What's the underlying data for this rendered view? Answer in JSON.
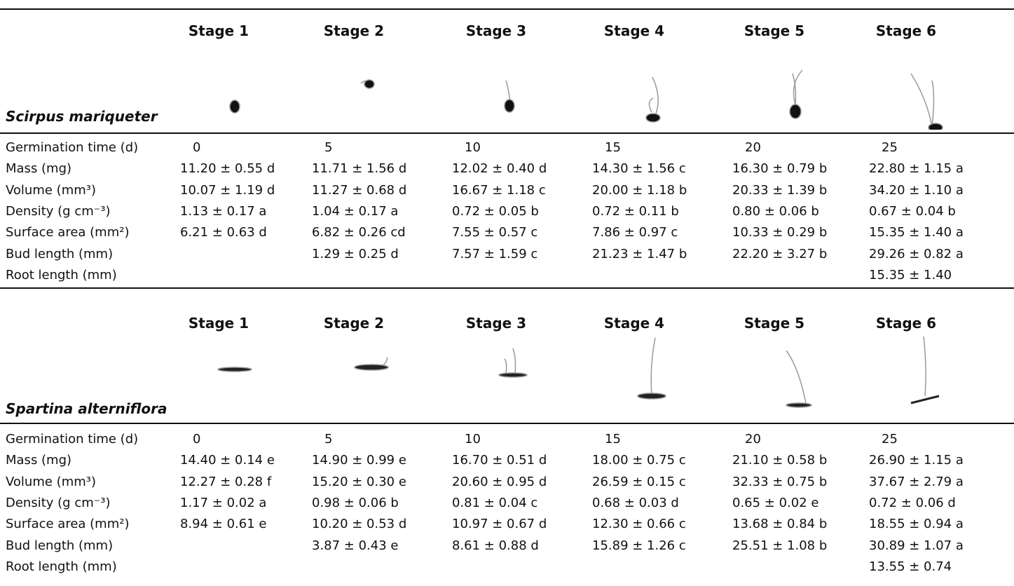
{
  "sections": [
    {
      "stages": [
        "Stage 1",
        "Stage 2",
        "Stage 3",
        "Stage 4",
        "Stage 5",
        "Stage 6"
      ],
      "species": "Scirpus mariqueter",
      "rows": [
        {
          "label": "Germination time (d)",
          "values": [
            "0",
            "5",
            "10",
            "15",
            "20",
            "25"
          ]
        },
        {
          "label": "Mass (mg)",
          "values": [
            "11.20 ± 0.55 d",
            "11.71 ± 1.56 d",
            "12.02 ± 0.40 d",
            "14.30 ± 1.56 c",
            "16.30 ± 0.79 b",
            "22.80 ± 1.15 a"
          ]
        },
        {
          "label": "Volume (mm³)",
          "values": [
            "10.07 ± 1.19 d",
            "11.27 ± 0.68 d",
            "16.67 ± 1.18 c",
            "20.00 ± 1.18 b",
            "20.33 ± 1.39 b",
            "34.20 ± 1.10 a"
          ]
        },
        {
          "label": "Density (g cm⁻³)",
          "values": [
            "1.13 ± 0.17 a",
            "1.04 ± 0.17 a",
            "0.72 ± 0.05 b",
            "0.72 ± 0.11 b",
            "0.80 ± 0.06 b",
            "0.67 ± 0.04 b"
          ]
        },
        {
          "label": "Surface area (mm²)",
          "values": [
            "6.21 ± 0.63 d",
            "6.82 ± 0.26 cd",
            "7.55 ± 0.57 c",
            "7.86 ± 0.97 c",
            "10.33 ± 0.29 b",
            "15.35 ± 1.40 a"
          ]
        },
        {
          "label": "Bud length (mm)",
          "values": [
            null,
            "1.29 ± 0.25 d",
            "7.57 ± 1.59 c",
            "21.23 ± 1.47 b",
            "22.20 ± 3.27 b",
            "29.26 ± 0.82 a"
          ]
        },
        {
          "label": "Root length (mm)",
          "values": [
            null,
            null,
            null,
            null,
            null,
            "15.35 ± 1.40"
          ]
        }
      ]
    },
    {
      "stages": [
        "Stage 1",
        "Stage 2",
        "Stage 3",
        "Stage 4",
        "Stage 5",
        "Stage 6"
      ],
      "species": "Spartina alterniflora",
      "rows": [
        {
          "label": "Germination time (d)",
          "values": [
            "0",
            "5",
            "10",
            "15",
            "20",
            "25"
          ]
        },
        {
          "label": "Mass (mg)",
          "values": [
            "14.40 ± 0.14 e",
            "14.90 ± 0.99 e",
            "16.70 ± 0.51 d",
            "18.00 ± 0.75 c",
            "21.10 ± 0.58 b",
            "26.90 ± 1.15 a"
          ]
        },
        {
          "label": "Volume (mm³)",
          "values": [
            "12.27 ± 0.28 f",
            "15.20 ± 0.30 e",
            "20.60 ± 0.95 d",
            "26.59 ± 0.15 c",
            "32.33 ± 0.75 b",
            "37.67 ± 2.79 a"
          ]
        },
        {
          "label": "Density (g cm⁻³)",
          "values": [
            "1.17 ± 0.02 a",
            "0.98 ± 0.06 b",
            "0.81 ± 0.04 c",
            "0.68 ± 0.03 d",
            "0.65 ± 0.02 e",
            "0.72 ± 0.06 d"
          ]
        },
        {
          "label": "Surface area (mm²)",
          "values": [
            "8.94 ± 0.61 e",
            "10.20 ± 0.53 d",
            "10.97 ± 0.67 d",
            "12.30 ± 0.66 c",
            "13.68 ± 0.84 b",
            "18.55 ± 0.94 a"
          ]
        },
        {
          "label": "Bud length (mm)",
          "values": [
            null,
            "3.87 ± 0.43 e",
            "8.61 ± 0.88 d",
            "15.89 ± 1.26 c",
            "25.51 ± 1.08 b",
            "30.89 ± 1.07 a"
          ]
        },
        {
          "label": "Root length (mm)",
          "values": [
            null,
            null,
            null,
            null,
            null,
            "13.55 ± 0.74"
          ]
        }
      ]
    }
  ]
}
